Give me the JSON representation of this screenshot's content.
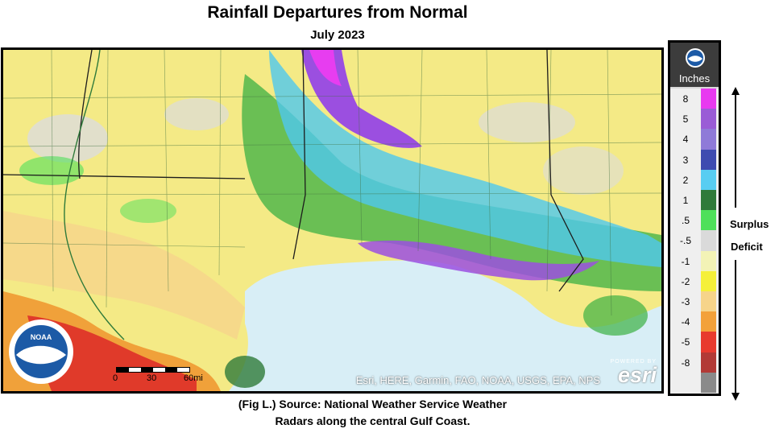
{
  "header": {
    "title": "Rainfall Departures from Normal",
    "subtitle": "July 2023"
  },
  "map": {
    "attribution": "Esri, HERE, Garmin, FAO, NOAA, USGS, EPA, NPS",
    "esri_powered_by": "POWERED BY",
    "esri_brand": "esri",
    "scale_labels": [
      "0",
      "30",
      "60mi"
    ],
    "seal_text": "NOAA",
    "colors": {
      "gulf": "#d8eef6",
      "deficit_severe": "#e03a2a",
      "deficit_mod": "#f0a13a",
      "deficit_light": "#f6d98a",
      "near_normal": "#f3ef9c",
      "surplus_green": "#3cb043",
      "surplus_blue": "#4fc8ee",
      "surplus_purple": "#9b4fe0",
      "surplus_magenta": "#e73df0"
    }
  },
  "legend": {
    "logo": "NOAA",
    "units": "Inches",
    "entries": [
      {
        "label": "8",
        "color": "#e839f0"
      },
      {
        "label": "5",
        "color": "#9a5cd6"
      },
      {
        "label": "4",
        "color": "#8f7ad8"
      },
      {
        "label": "3",
        "color": "#3e4bb0"
      },
      {
        "label": "2",
        "color": "#58cdf2"
      },
      {
        "label": "1",
        "color": "#2f7a3a"
      },
      {
        "label": ".5",
        "color": "#4ee05a"
      },
      {
        "label": "-.5",
        "color": "#dadada"
      },
      {
        "label": "-1",
        "color": "#f3f3b6"
      },
      {
        "label": "-2",
        "color": "#f5f03a"
      },
      {
        "label": "-3",
        "color": "#f6d48a"
      },
      {
        "label": "-4",
        "color": "#f3a13a"
      },
      {
        "label": "-5",
        "color": "#e83a2e"
      },
      {
        "label": "-8",
        "color": "#b23a36"
      },
      {
        "label": "",
        "color": "#8a8a8a"
      }
    ],
    "surplus_label": "Surplus",
    "deficit_label": "Deficit"
  },
  "caption": {
    "line1": "(Fig L.) Source: National Weather Service Weather",
    "line2": "Radars along the central Gulf Coast."
  }
}
